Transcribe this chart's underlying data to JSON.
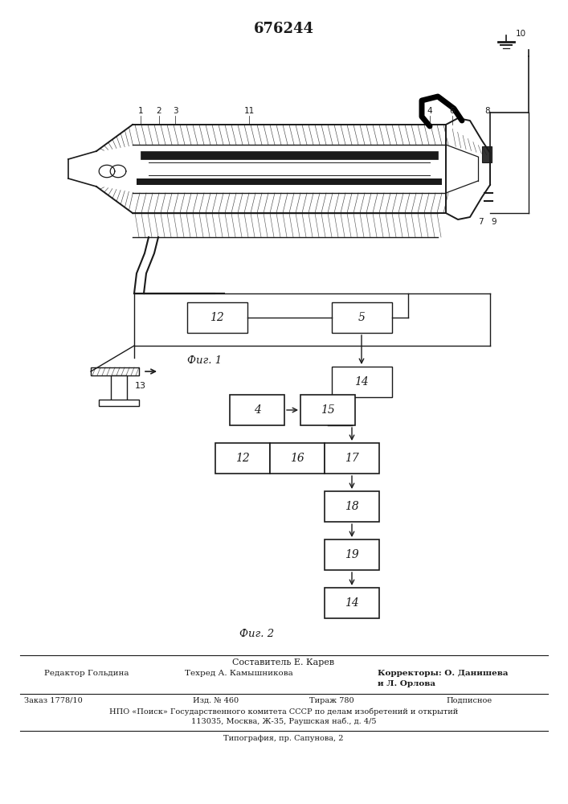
{
  "patent_number": "676244",
  "fig1_caption": "Фиг. 1",
  "fig2_caption": "Фиг. 2",
  "footer_composer": "Составитель Е. Карев",
  "footer_editor": "Редактор Гольдина",
  "footer_techred": "Техред А. Камышникова",
  "footer_correctors_label": "Корректоры: О. Данишева",
  "footer_correctors2": "и Л. Орлова",
  "footer_order": "Заказ 1778/10",
  "footer_izd": "Изд. № 460",
  "footer_tirazh": "Тираж 780",
  "footer_podpisnoe": "Подписное",
  "footer_npo": "НПО «Поиск» Государственного комитета СССР по делам изобретений и открытий",
  "footer_address": "113035, Москва, Ж-35, Раушская наб., д. 4/5",
  "footer_typography": "Типография, пр. Сапунова, 2",
  "bg_color": "#ffffff",
  "line_color": "#1a1a1a"
}
